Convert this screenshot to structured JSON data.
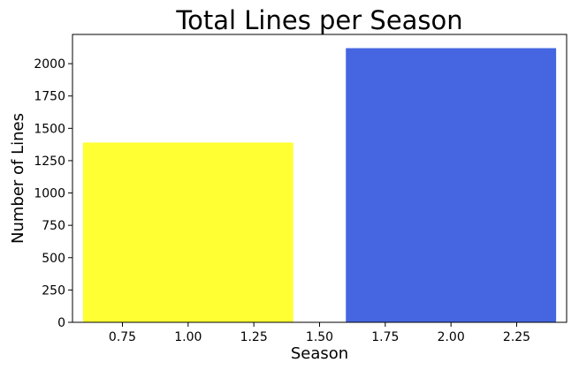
{
  "chart_data": {
    "type": "bar",
    "title": "Total Lines per Season",
    "xlabel": "Season",
    "ylabel": "Number of Lines",
    "bars": [
      {
        "x": 1,
        "value": 1390,
        "width": 0.8,
        "color": "#FFFF33"
      },
      {
        "x": 2,
        "value": 2120,
        "width": 0.8,
        "color": "#4566E0"
      }
    ],
    "xlim": [
      0.56,
      2.44
    ],
    "ylim": [
      0,
      2226
    ],
    "xticks": [
      0.75,
      1.0,
      1.25,
      1.5,
      1.75,
      2.0,
      2.25
    ],
    "xtick_labels": [
      "0.75",
      "1.00",
      "1.25",
      "1.50",
      "1.75",
      "2.00",
      "2.25"
    ],
    "yticks": [
      0,
      250,
      500,
      750,
      1000,
      1250,
      1500,
      1750,
      2000
    ],
    "ytick_labels": [
      "0",
      "250",
      "500",
      "750",
      "1000",
      "1250",
      "1500",
      "1750",
      "2000"
    ],
    "grid": false,
    "legend": "none"
  }
}
